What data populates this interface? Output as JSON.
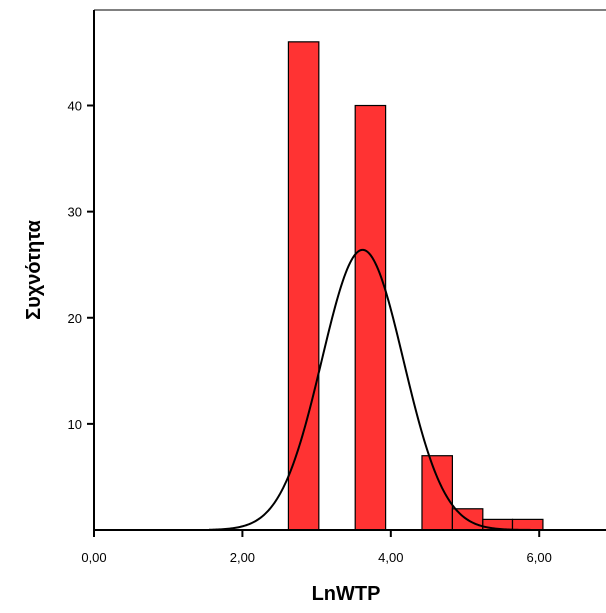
{
  "chart_data": {
    "type": "bar",
    "subtype": "histogram",
    "xlabel": "LnWTP",
    "ylabel": "Συχνότητα",
    "xlim": [
      0,
      6.9
    ],
    "ylim": [
      0,
      49
    ],
    "x_ticks": [
      {
        "value": 0,
        "label": "0,00"
      },
      {
        "value": 2,
        "label": "2,00"
      },
      {
        "value": 4,
        "label": "4,00"
      },
      {
        "value": 6,
        "label": "6,00"
      }
    ],
    "y_ticks": [
      {
        "value": 10,
        "label": "10"
      },
      {
        "value": 20,
        "label": "20"
      },
      {
        "value": 30,
        "label": "30"
      },
      {
        "value": 40,
        "label": "40"
      }
    ],
    "bins": [
      {
        "x0": 2.62,
        "x1": 3.03,
        "count": 46
      },
      {
        "x0": 3.52,
        "x1": 3.93,
        "count": 40
      },
      {
        "x0": 4.42,
        "x1": 4.83,
        "count": 7
      },
      {
        "x0": 4.83,
        "x1": 5.24,
        "count": 2
      },
      {
        "x0": 5.24,
        "x1": 5.64,
        "count": 1
      },
      {
        "x0": 5.64,
        "x1": 6.05,
        "count": 1
      }
    ],
    "normal_curve": {
      "mean": 3.62,
      "std_dev": 0.55,
      "peak": 26.4
    },
    "bar_color": "#ff3333",
    "curve_color": "#000000",
    "grid": false,
    "legend": "none"
  }
}
